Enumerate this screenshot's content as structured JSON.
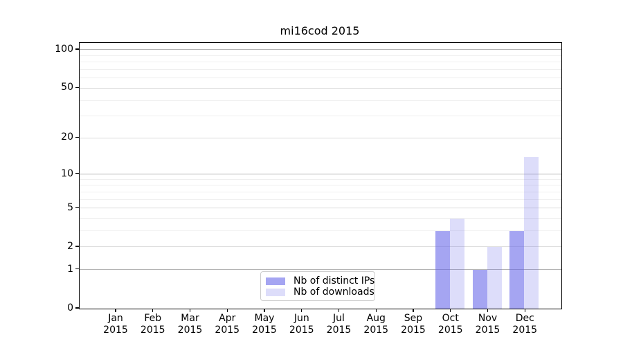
{
  "chart_data": {
    "type": "bar",
    "title": "mi16cod 2015",
    "categories": [
      "Jan 2015",
      "Feb 2015",
      "Mar 2015",
      "Apr 2015",
      "May 2015",
      "Jun 2015",
      "Jul 2015",
      "Aug 2015",
      "Sep 2015",
      "Oct 2015",
      "Nov 2015",
      "Dec 2015"
    ],
    "series": [
      {
        "name": "Nb of distinct IPs",
        "color": "#6464e8",
        "opacity": 0.58,
        "values": [
          0,
          0,
          0,
          0,
          0,
          0,
          0,
          0,
          0,
          3,
          1,
          3
        ]
      },
      {
        "name": "Nb of downloads",
        "color": "#6464e8",
        "opacity": 0.22,
        "values": [
          0,
          0,
          0,
          0,
          0,
          0,
          0,
          0,
          0,
          4,
          2,
          14
        ]
      }
    ],
    "yscale": "log1p",
    "ylim": [
      0,
      114
    ],
    "yticks": [
      0,
      1,
      2,
      5,
      10,
      20,
      50,
      100
    ],
    "minor_gridlines": [
      3,
      4,
      6,
      7,
      8,
      9,
      30,
      40,
      60,
      70,
      80,
      90
    ],
    "grid": "horizontal",
    "legend_position": "lower center",
    "xlabel": "",
    "ylabel": ""
  },
  "colors": {
    "grid_pow10": "#b4b4b4",
    "grid_major": "#d9d9d9",
    "grid_minor": "#efefef",
    "spine": "#000000",
    "background": "#ffffff",
    "text": "#000000"
  }
}
